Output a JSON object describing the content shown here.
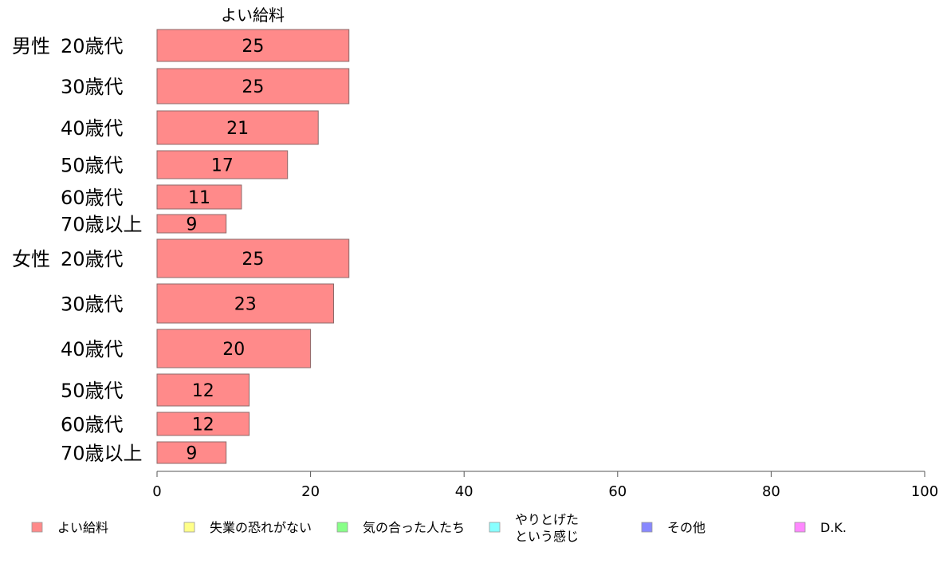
{
  "chart_data": {
    "type": "bar",
    "orientation": "horizontal",
    "title": "よい給料",
    "groups": [
      {
        "name": "男性",
        "categories": [
          "20歳代",
          "30歳代",
          "40歳代",
          "50歳代",
          "60歳代",
          "70歳以上"
        ],
        "values": [
          25,
          25,
          21,
          17,
          11,
          9
        ]
      },
      {
        "name": "女性",
        "categories": [
          "20歳代",
          "30歳代",
          "40歳代",
          "50歳代",
          "60歳代",
          "70歳以上"
        ],
        "values": [
          25,
          23,
          20,
          12,
          12,
          9
        ]
      }
    ],
    "xlim": [
      0,
      100
    ],
    "xticks": [
      0,
      20,
      40,
      60,
      80,
      100
    ],
    "grid": false,
    "legend_position": "bottom",
    "legend": [
      {
        "label": "よい給料",
        "color": "#ff8a8a"
      },
      {
        "label": "失業の恐れがない",
        "color": "#ffff88"
      },
      {
        "label": "気の合った人たち",
        "color": "#88ff88"
      },
      {
        "label": "やりとげた",
        "label2": "という感じ",
        "color": "#88ffff"
      },
      {
        "label": "その他",
        "color": "#8888ff"
      },
      {
        "label": "D.K.",
        "color": "#ff88ff"
      }
    ],
    "bar_color": "#ff8a8a",
    "bar_edge_color": "#8c6a6a"
  }
}
